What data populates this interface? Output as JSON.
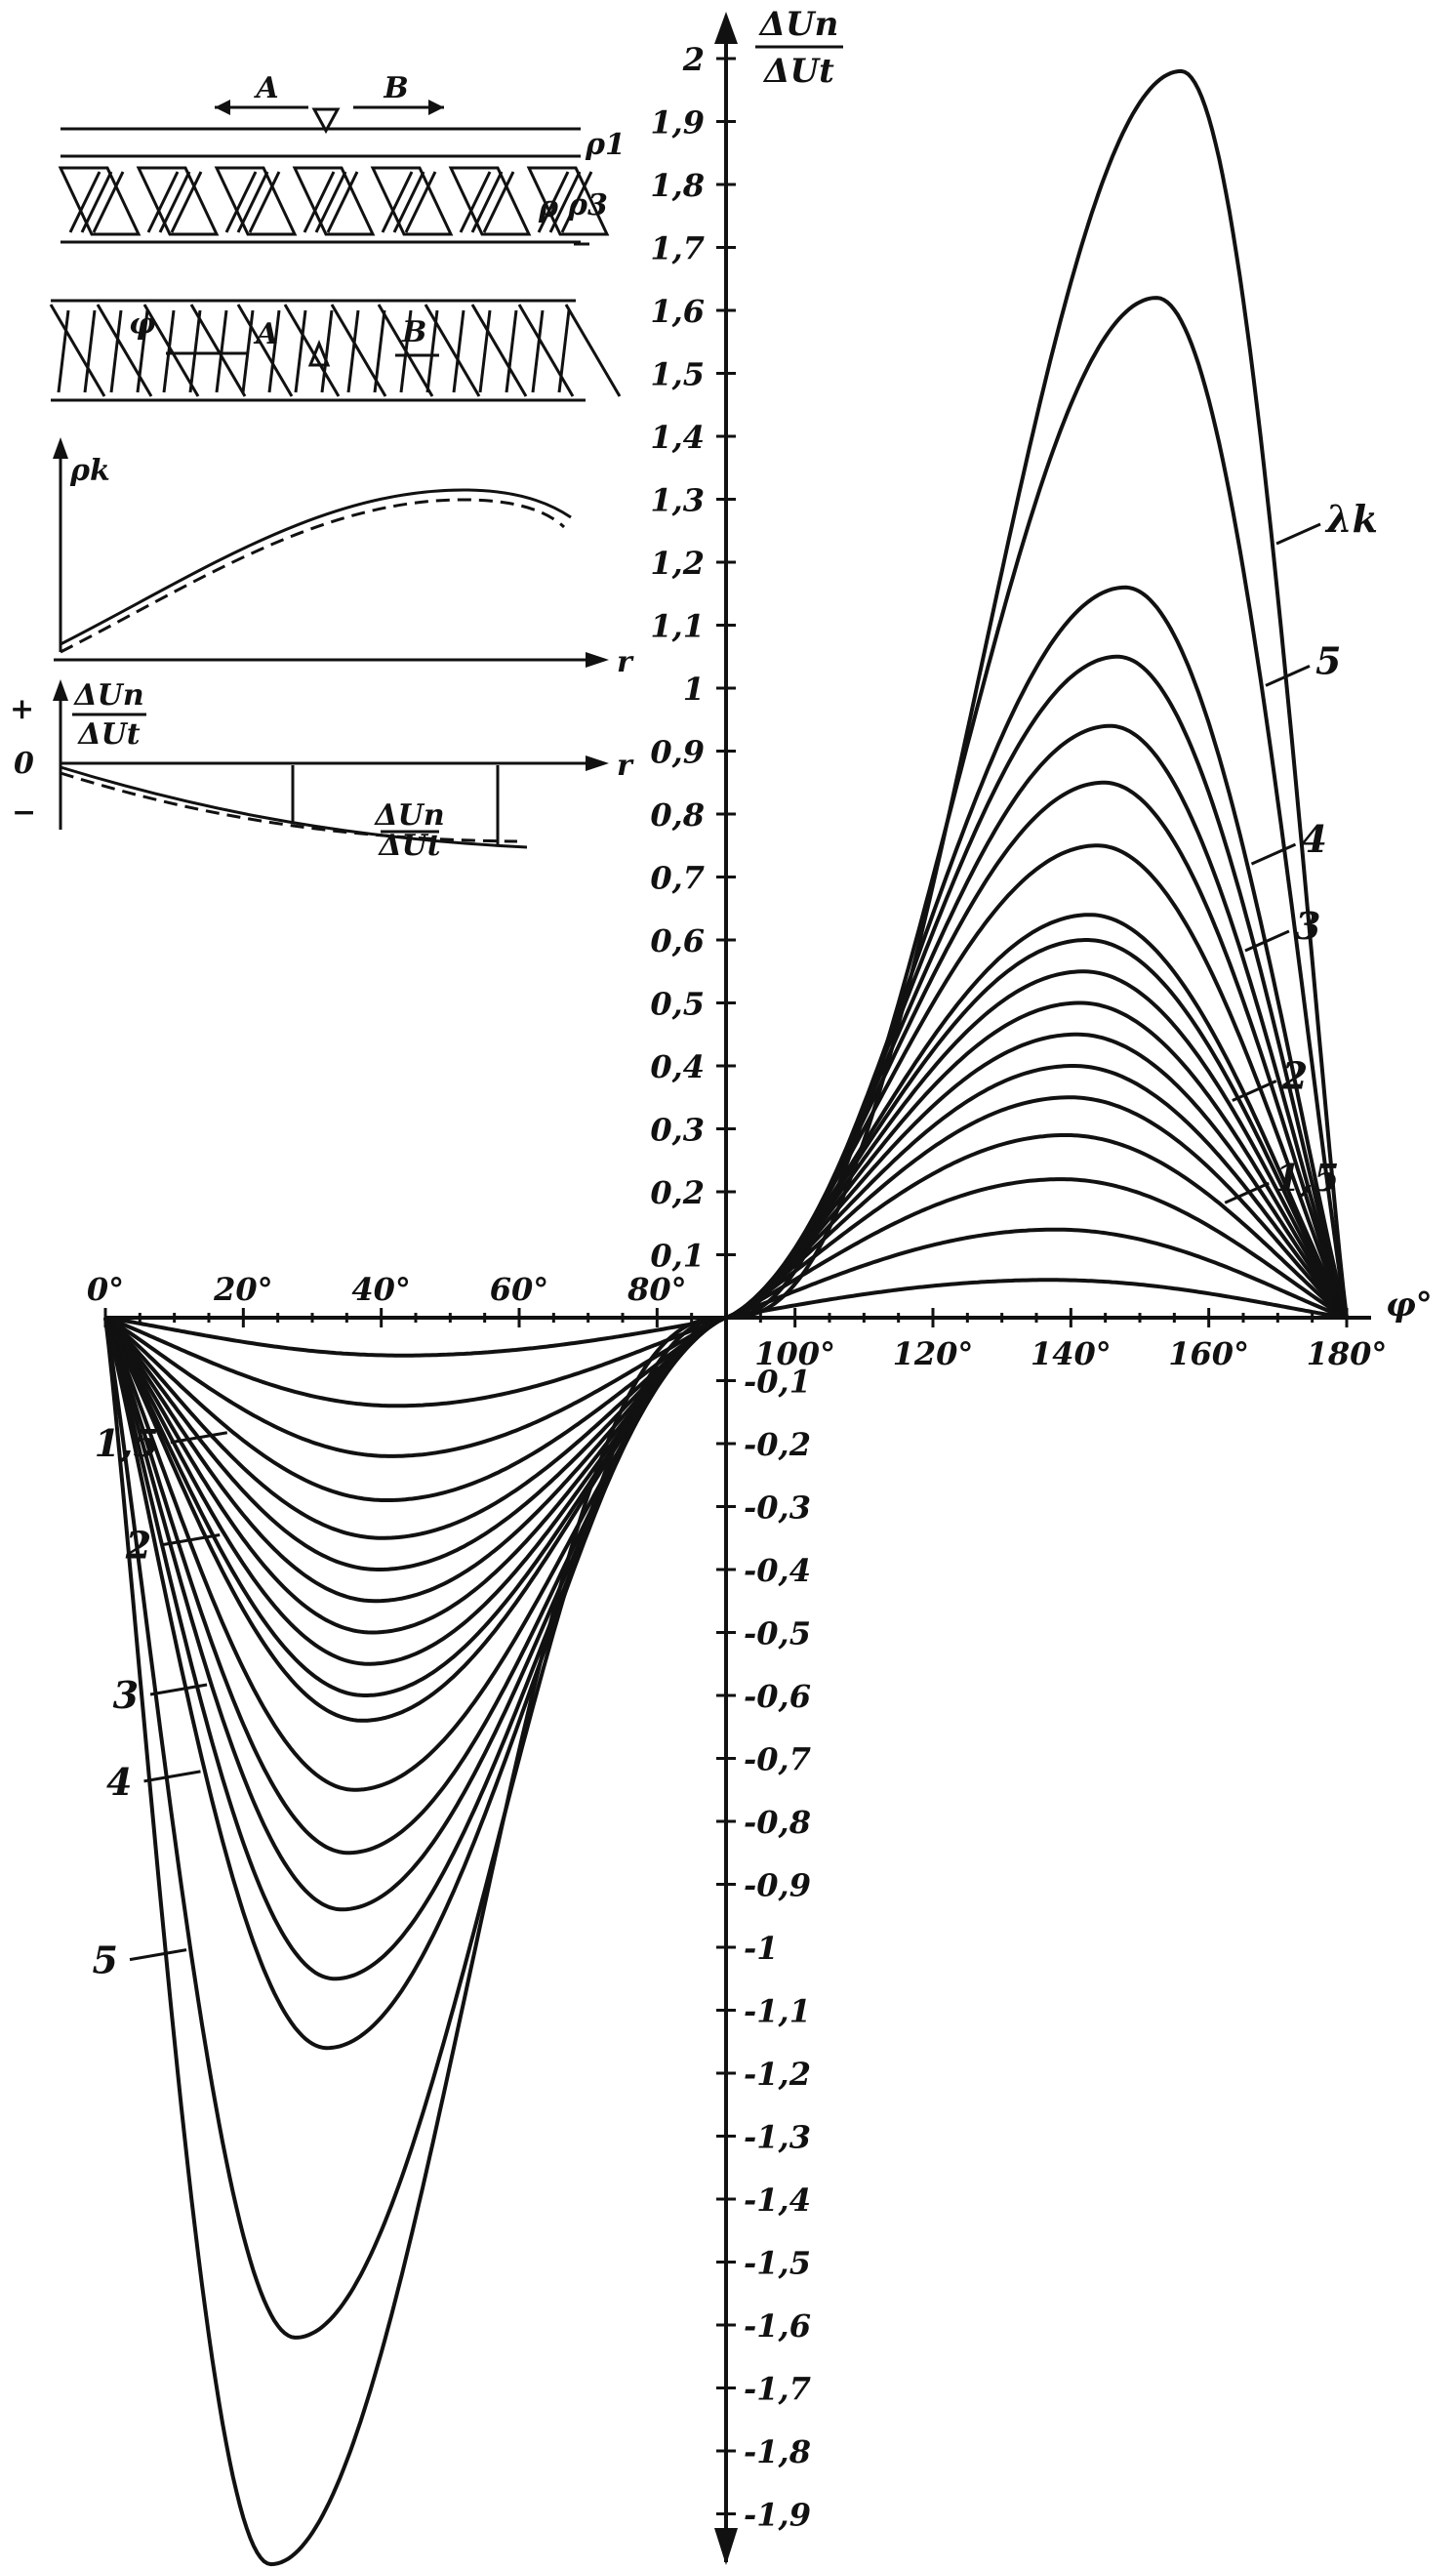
{
  "chart_data": {
    "type": "line",
    "title": "",
    "x_axis": {
      "label": "φ°",
      "range": [
        0,
        180
      ],
      "tick_labels": [
        "0°",
        "20°",
        "40°",
        "60°",
        "80°",
        "100°",
        "120°",
        "140°",
        "160°",
        "180°"
      ],
      "tick_values": [
        0,
        20,
        40,
        60,
        80,
        100,
        120,
        140,
        160,
        180
      ]
    },
    "y_axis": {
      "label": "ΔUn/ΔUt",
      "range": [
        -1.97,
        2.02
      ],
      "tick_labels_pos": [
        "0,1",
        "0,2",
        "0,3",
        "0,4",
        "0,5",
        "0,6",
        "0,7",
        "0,8",
        "0,9",
        "1",
        "1,1",
        "1,2",
        "1,3",
        "1,4",
        "1,5",
        "1,6",
        "1,7",
        "1,8",
        "1,9",
        "2"
      ],
      "tick_labels_neg": [
        "-0,1",
        "-0,2",
        "-0,3",
        "-0,4",
        "-0,5",
        "-0,6",
        "-0,7",
        "-0,8",
        "-0,9",
        "-1",
        "-1,1",
        "-1,2",
        "-1,3",
        "-1,4",
        "-1,5",
        "-1,6",
        "-1,7",
        "-1,8",
        "-1,9"
      ]
    },
    "curve_family": {
      "parameter_name": "λk",
      "peak_values": [
        0.06,
        0.14,
        0.22,
        0.29,
        0.35,
        0.4,
        0.45,
        0.5,
        0.55,
        0.6,
        0.64,
        0.75,
        0.85,
        0.94,
        1.05,
        1.16,
        1.62,
        1.98
      ],
      "labels_right": [
        {
          "text": "λk",
          "peak": 1.98
        },
        {
          "text": "5",
          "peak": 1.62
        },
        {
          "text": "4",
          "peak": 1.16
        },
        {
          "text": "3",
          "peak": 0.94
        },
        {
          "text": "2",
          "peak": 0.55
        },
        {
          "text": "1,5",
          "peak": 0.29
        }
      ],
      "labels_left": [
        {
          "text": "1,5",
          "peak": 0.29
        },
        {
          "text": "2",
          "peak": 0.55
        },
        {
          "text": "3",
          "peak": 0.94
        },
        {
          "text": "4",
          "peak": 1.16
        },
        {
          "text": "5",
          "peak": 1.62
        }
      ],
      "note": "Curves are antisymmetric about φ = 90°; each curve value at φ equals minus its value at 180° − φ."
    }
  },
  "inset": {
    "label_A": "A",
    "label_B": "B",
    "label_rho1": "ρ1",
    "label_rho3": "ρ3",
    "label_rho": "ρ",
    "label_phi": "φ",
    "rho_k_label": "ρk",
    "r_label": "r",
    "ratio_label": "ΔUn/ΔUt",
    "plus_sign": "+",
    "minus_sign": "−",
    "zero_label": "0",
    "colors": {
      "ink": "#111111",
      "paper": "#ffffff"
    }
  }
}
